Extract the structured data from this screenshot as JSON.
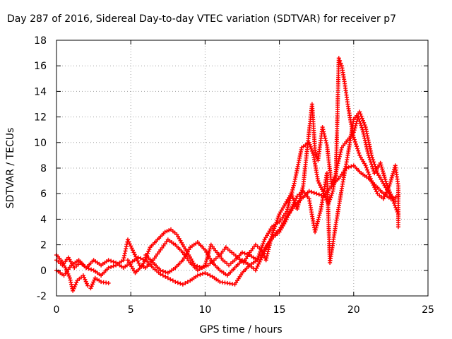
{
  "chart_data": {
    "type": "scatter",
    "title": "Day 287 of 2016, Sidereal Day-to-day VTEC variation (SDTVAR) for receiver p7",
    "xlabel": "GPS time / hours",
    "ylabel": "SDTVAR / TECUs",
    "xlim": [
      0,
      25
    ],
    "ylim": [
      -2,
      18
    ],
    "xticks": [
      "0",
      "5",
      "10",
      "15",
      "20",
      "25"
    ],
    "yticks": [
      "-2",
      "0",
      "2",
      "4",
      "6",
      "8",
      "10",
      "12",
      "14",
      "16",
      "18"
    ],
    "grid": true,
    "marker": "+",
    "color": "#ff0000",
    "series": [
      {
        "points": [
          [
            0,
            1.2
          ],
          [
            0.3,
            0.8
          ],
          [
            0.6,
            0.2
          ],
          [
            0.9,
            -0.6
          ],
          [
            1.1,
            -1.6
          ],
          [
            1.4,
            -0.8
          ],
          [
            1.8,
            -0.4
          ],
          [
            2.1,
            -1.2
          ],
          [
            2.3,
            -1.4
          ],
          [
            2.6,
            -0.6
          ],
          [
            3.0,
            -0.9
          ],
          [
            3.5,
            -1.0
          ]
        ]
      },
      {
        "points": [
          [
            0,
            0.8
          ],
          [
            0.4,
            0.4
          ],
          [
            0.8,
            1.0
          ],
          [
            1.2,
            0.2
          ],
          [
            1.6,
            0.6
          ],
          [
            2.0,
            0.2
          ],
          [
            2.5,
            0.8
          ],
          [
            3.0,
            0.4
          ],
          [
            3.5,
            0.8
          ],
          [
            4.0,
            0.6
          ],
          [
            4.5,
            0.2
          ],
          [
            5.0,
            0.6
          ],
          [
            5.5,
            1.0
          ],
          [
            6.0,
            0.8
          ],
          [
            6.5,
            0.2
          ],
          [
            7.0,
            -0.3
          ],
          [
            7.5,
            -0.6
          ],
          [
            8.0,
            -0.9
          ],
          [
            8.5,
            -1.1
          ],
          [
            9.0,
            -0.8
          ],
          [
            9.5,
            -0.4
          ],
          [
            10.0,
            -0.2
          ],
          [
            10.5,
            -0.5
          ],
          [
            11.0,
            -0.9
          ],
          [
            11.5,
            -1.0
          ],
          [
            12.0,
            -1.1
          ],
          [
            12.5,
            -0.2
          ],
          [
            13.0,
            0.4
          ],
          [
            13.5,
            0.8
          ],
          [
            14.0,
            1.6
          ],
          [
            14.5,
            2.6
          ],
          [
            15.0,
            3.2
          ],
          [
            15.5,
            4.2
          ],
          [
            16.0,
            5.0
          ],
          [
            16.5,
            5.6
          ],
          [
            17.0,
            6.2
          ],
          [
            17.5,
            6.0
          ],
          [
            18.0,
            5.8
          ],
          [
            18.5,
            6.6
          ],
          [
            19.0,
            7.2
          ],
          [
            19.5,
            8.0
          ],
          [
            20.0,
            8.2
          ],
          [
            20.5,
            7.6
          ],
          [
            21.0,
            7.2
          ],
          [
            21.5,
            6.6
          ],
          [
            22.0,
            6.0
          ],
          [
            22.5,
            5.6
          ],
          [
            23.0,
            5.8
          ]
        ]
      },
      {
        "points": [
          [
            0,
            0.0
          ],
          [
            0.5,
            -0.4
          ],
          [
            1.0,
            0.4
          ],
          [
            1.5,
            0.8
          ],
          [
            2.0,
            0.2
          ],
          [
            2.5,
            0.0
          ],
          [
            3.0,
            -0.4
          ],
          [
            3.5,
            0.2
          ],
          [
            4.0,
            0.4
          ],
          [
            4.5,
            0.8
          ],
          [
            4.8,
            2.4
          ],
          [
            5.2,
            1.4
          ],
          [
            5.6,
            0.4
          ],
          [
            6.0,
            0.2
          ],
          [
            6.5,
            0.8
          ],
          [
            7.0,
            1.6
          ],
          [
            7.5,
            2.4
          ],
          [
            8.0,
            2.0
          ],
          [
            8.5,
            1.4
          ],
          [
            9.0,
            0.6
          ],
          [
            9.5,
            0.0
          ],
          [
            10.0,
            0.4
          ],
          [
            10.4,
            2.0
          ],
          [
            10.8,
            1.4
          ],
          [
            11.2,
            0.8
          ],
          [
            11.6,
            0.4
          ],
          [
            12.0,
            0.8
          ],
          [
            12.5,
            1.4
          ],
          [
            13.0,
            1.2
          ],
          [
            13.5,
            0.8
          ],
          [
            14.0,
            2.4
          ],
          [
            14.5,
            3.4
          ],
          [
            15.0,
            3.8
          ],
          [
            15.5,
            4.6
          ],
          [
            16.0,
            6.8
          ],
          [
            16.5,
            9.6
          ],
          [
            17.0,
            10.0
          ],
          [
            17.3,
            9.0
          ],
          [
            17.6,
            7.0
          ],
          [
            18.0,
            6.0
          ],
          [
            18.3,
            5.2
          ],
          [
            18.6,
            6.2
          ],
          [
            18.9,
            8.2
          ],
          [
            19.2,
            9.6
          ],
          [
            19.6,
            10.2
          ],
          [
            20.0,
            10.8
          ],
          [
            20.3,
            12.0
          ],
          [
            20.6,
            11.0
          ],
          [
            21.0,
            9.0
          ],
          [
            21.4,
            7.6
          ],
          [
            21.8,
            8.4
          ],
          [
            22.2,
            6.8
          ],
          [
            22.6,
            5.6
          ],
          [
            23.0,
            4.4
          ]
        ]
      },
      {
        "points": [
          [
            4.8,
            0.8
          ],
          [
            5.3,
            -0.2
          ],
          [
            5.8,
            0.4
          ],
          [
            6.3,
            1.8
          ],
          [
            6.8,
            2.4
          ],
          [
            7.3,
            3.0
          ],
          [
            7.7,
            3.2
          ],
          [
            8.1,
            2.8
          ],
          [
            8.5,
            2.0
          ],
          [
            8.9,
            1.2
          ],
          [
            9.3,
            0.4
          ],
          [
            9.8,
            0.2
          ],
          [
            10.2,
            0.4
          ],
          [
            10.6,
            0.8
          ],
          [
            11.0,
            1.2
          ],
          [
            11.4,
            1.8
          ],
          [
            11.8,
            1.4
          ],
          [
            12.2,
            1.0
          ],
          [
            12.6,
            0.6
          ],
          [
            13.0,
            1.4
          ],
          [
            13.4,
            2.0
          ],
          [
            13.8,
            1.6
          ],
          [
            14.1,
            0.8
          ],
          [
            14.5,
            2.8
          ],
          [
            15.0,
            4.4
          ],
          [
            15.4,
            5.2
          ],
          [
            15.8,
            6.0
          ],
          [
            16.2,
            4.8
          ],
          [
            16.6,
            6.6
          ],
          [
            16.9,
            9.8
          ],
          [
            17.2,
            13.0
          ],
          [
            17.4,
            9.4
          ],
          [
            17.6,
            8.6
          ],
          [
            17.9,
            11.2
          ],
          [
            18.2,
            9.8
          ],
          [
            18.5,
            6.8
          ],
          [
            18.8,
            7.4
          ],
          [
            19.0,
            16.6
          ],
          [
            19.2,
            16.0
          ],
          [
            19.4,
            14.6
          ],
          [
            19.6,
            13.0
          ],
          [
            19.8,
            11.6
          ],
          [
            20.0,
            10.4
          ],
          [
            20.4,
            9.0
          ],
          [
            20.8,
            8.2
          ],
          [
            21.2,
            7.0
          ],
          [
            21.6,
            6.0
          ],
          [
            22.0,
            5.6
          ],
          [
            22.4,
            6.6
          ],
          [
            22.8,
            8.2
          ],
          [
            23.0,
            6.6
          ],
          [
            23.0,
            3.4
          ]
        ]
      },
      {
        "points": [
          [
            6.0,
            1.2
          ],
          [
            6.5,
            0.6
          ],
          [
            7.0,
            0.0
          ],
          [
            7.5,
            -0.2
          ],
          [
            8.0,
            0.2
          ],
          [
            8.5,
            0.8
          ],
          [
            9.0,
            1.8
          ],
          [
            9.5,
            2.2
          ],
          [
            10.0,
            1.6
          ],
          [
            10.5,
            0.6
          ],
          [
            11.0,
            0.0
          ],
          [
            11.5,
            -0.4
          ],
          [
            12.0,
            0.2
          ],
          [
            12.5,
            0.8
          ],
          [
            13.0,
            0.4
          ],
          [
            13.4,
            0.0
          ],
          [
            13.8,
            1.0
          ],
          [
            14.2,
            2.0
          ],
          [
            14.6,
            2.6
          ],
          [
            15.0,
            3.0
          ],
          [
            15.4,
            3.8
          ],
          [
            15.8,
            4.8
          ],
          [
            16.2,
            5.8
          ],
          [
            16.6,
            6.2
          ],
          [
            17.0,
            5.6
          ],
          [
            17.4,
            3.0
          ],
          [
            17.8,
            4.8
          ],
          [
            18.0,
            6.2
          ],
          [
            18.2,
            7.6
          ],
          [
            18.4,
            0.6
          ],
          [
            18.8,
            3.6
          ],
          [
            19.2,
            6.4
          ],
          [
            19.6,
            9.0
          ],
          [
            20.0,
            11.8
          ],
          [
            20.4,
            12.4
          ],
          [
            20.8,
            11.2
          ],
          [
            21.2,
            9.0
          ],
          [
            21.6,
            7.6
          ],
          [
            22.0,
            6.8
          ],
          [
            22.4,
            6.0
          ],
          [
            22.8,
            5.4
          ]
        ]
      }
    ]
  }
}
